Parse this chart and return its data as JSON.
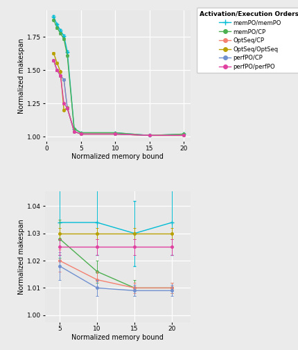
{
  "legend_title": "Activation/Execution Orders:",
  "series": [
    {
      "label": "memPO/memPO",
      "color": "#00BCD4",
      "marker": "+"
    },
    {
      "label": "memPO/CP",
      "color": "#4CAF50",
      "marker": "o"
    },
    {
      "label": "OptSeq/CP",
      "color": "#F48070",
      "marker": "o"
    },
    {
      "label": "OptSeq/OptSeq",
      "color": "#B8A000",
      "marker": "o"
    },
    {
      "label": "perfPO/CP",
      "color": "#7090D0",
      "marker": "o"
    },
    {
      "label": "perfPO/perfPO",
      "color": "#E040A0",
      "marker": "o"
    }
  ],
  "top_plot": {
    "x": [
      1,
      1.5,
      2,
      2.5,
      3,
      4,
      5,
      10,
      15,
      20
    ],
    "ylabel": "Normalized makespan",
    "xlabel": "Normalized memory bound",
    "xlim": [
      -0.3,
      21
    ],
    "ylim": [
      0.965,
      1.95
    ],
    "yticks": [
      1.0,
      1.25,
      1.5,
      1.75
    ],
    "xticks": [
      0,
      5,
      10,
      15,
      20
    ],
    "series_data": [
      {
        "y": [
          1.905,
          1.845,
          1.8,
          1.76,
          1.64,
          1.06,
          1.03,
          1.03,
          1.01,
          1.02
        ],
        "yerr": [
          0.008,
          0.008,
          0.008,
          0.008,
          0.008,
          0.004,
          0.003,
          0.003,
          0.002,
          0.002
        ]
      },
      {
        "y": [
          1.88,
          1.82,
          1.778,
          1.735,
          1.61,
          1.06,
          1.03,
          1.03,
          1.01,
          1.02
        ],
        "yerr": [
          0.008,
          0.008,
          0.008,
          0.008,
          0.008,
          0.004,
          0.003,
          0.003,
          0.002,
          0.002
        ]
      },
      {
        "y": [
          1.575,
          1.5,
          1.46,
          1.43,
          1.215,
          1.04,
          1.02,
          1.02,
          1.01,
          1.01
        ],
        "yerr": [
          0.008,
          0.008,
          0.008,
          0.008,
          0.008,
          0.004,
          0.003,
          0.003,
          0.002,
          0.002
        ]
      },
      {
        "y": [
          1.63,
          1.555,
          1.49,
          1.2,
          1.22,
          1.04,
          1.02,
          1.02,
          1.01,
          1.01
        ],
        "yerr": [
          0.008,
          0.008,
          0.008,
          0.008,
          0.008,
          0.004,
          0.003,
          0.003,
          0.002,
          0.002
        ]
      },
      {
        "y": [
          1.575,
          1.5,
          1.46,
          1.43,
          1.215,
          1.04,
          1.02,
          1.02,
          1.01,
          1.01
        ],
        "yerr": [
          0.008,
          0.008,
          0.008,
          0.008,
          0.008,
          0.004,
          0.003,
          0.003,
          0.002,
          0.002
        ]
      },
      {
        "y": [
          1.575,
          1.5,
          1.46,
          1.25,
          1.215,
          1.04,
          1.02,
          1.02,
          1.01,
          1.01
        ],
        "yerr": [
          0.008,
          0.008,
          0.008,
          0.008,
          0.008,
          0.004,
          0.003,
          0.003,
          0.002,
          0.002
        ]
      }
    ]
  },
  "bottom_plot": {
    "x": [
      5,
      10,
      15,
      20
    ],
    "ylabel": "Normalized makespan",
    "xlabel": "Normalized memory bound",
    "xlim": [
      3.0,
      22.5
    ],
    "ylim": [
      0.9975,
      1.0455
    ],
    "yticks": [
      1.0,
      1.01,
      1.02,
      1.03,
      1.04
    ],
    "xticks": [
      5,
      10,
      15,
      20
    ],
    "series_data": [
      {
        "y": [
          1.034,
          1.034,
          1.03,
          1.034
        ],
        "yerr": [
          0.012,
          0.012,
          0.012,
          0.012
        ]
      },
      {
        "y": [
          1.028,
          1.016,
          1.01,
          1.01
        ],
        "yerr": [
          0.007,
          0.004,
          0.003,
          0.002
        ]
      },
      {
        "y": [
          1.02,
          1.013,
          1.01,
          1.01
        ],
        "yerr": [
          0.004,
          0.003,
          0.002,
          0.002
        ]
      },
      {
        "y": [
          1.03,
          1.03,
          1.03,
          1.03
        ],
        "yerr": [
          0.002,
          0.002,
          0.002,
          0.002
        ]
      },
      {
        "y": [
          1.018,
          1.01,
          1.009,
          1.009
        ],
        "yerr": [
          0.005,
          0.003,
          0.002,
          0.002
        ]
      },
      {
        "y": [
          1.025,
          1.025,
          1.025,
          1.025
        ],
        "yerr": [
          0.003,
          0.003,
          0.003,
          0.003
        ]
      }
    ]
  },
  "bg_color": "#E8E8E8",
  "grid_color": "white",
  "fig_bg": "#EBEBEB"
}
